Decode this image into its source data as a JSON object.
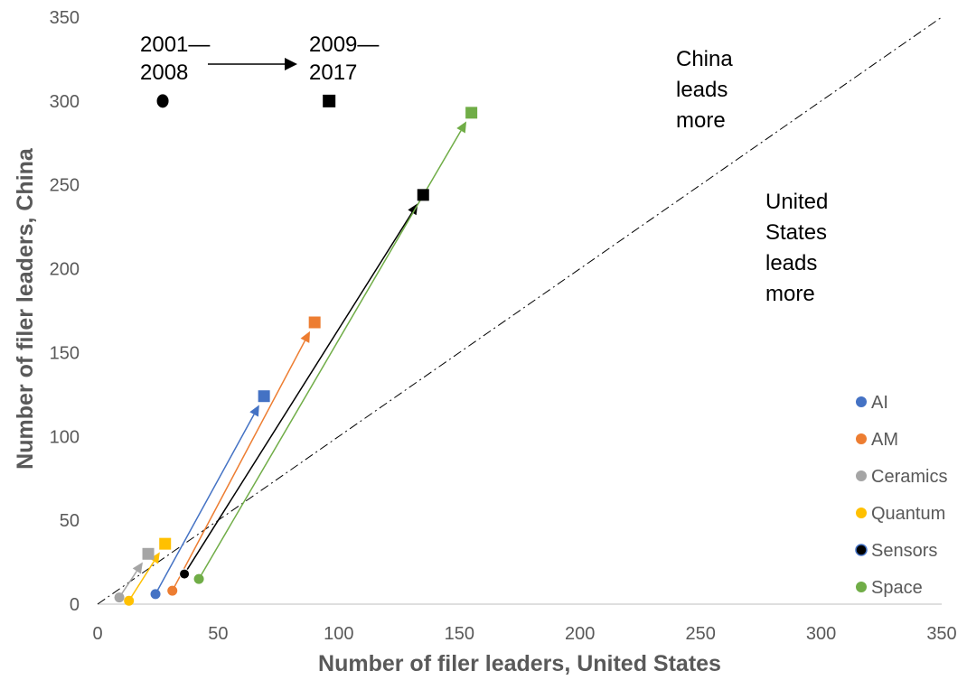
{
  "chart_data": {
    "type": "scatter",
    "xlabel": "Number of filer leaders, United States",
    "ylabel": "Number of filer leaders, China",
    "xlim": [
      0,
      350
    ],
    "ylim": [
      0,
      350
    ],
    "x_ticks": [
      "0",
      "50",
      "100",
      "150",
      "200",
      "250",
      "300",
      "350"
    ],
    "y_ticks": [
      "0",
      "50",
      "100",
      "150",
      "200",
      "250",
      "300",
      "350"
    ],
    "grid": false,
    "legend_position": "right",
    "reference_line": {
      "type": "y=x",
      "style": "dash-dot",
      "color": "#000000"
    },
    "period_key": {
      "from_label": [
        "2001—",
        "2008"
      ],
      "to_label": [
        "2009—",
        "2017"
      ],
      "from_marker": "circle",
      "to_marker": "square",
      "from_point": [
        27,
        300
      ],
      "to_point": [
        96,
        300
      ]
    },
    "region_labels": {
      "china": [
        "China",
        "leads",
        "more"
      ],
      "us": [
        "United",
        "States",
        "leads",
        "more"
      ]
    },
    "series": [
      {
        "name": "AI",
        "color": "#4472C4",
        "p2001_2008": [
          24,
          6
        ],
        "p2009_2017": [
          69,
          124
        ]
      },
      {
        "name": "AM",
        "color": "#ED7D31",
        "p2001_2008": [
          31,
          8
        ],
        "p2009_2017": [
          90,
          168
        ]
      },
      {
        "name": "Ceramics",
        "color": "#A5A5A5",
        "p2001_2008": [
          9,
          4
        ],
        "p2009_2017": [
          21,
          30
        ]
      },
      {
        "name": "Quantum",
        "color": "#FFC000",
        "p2001_2008": [
          13,
          2
        ],
        "p2009_2017": [
          28,
          36
        ]
      },
      {
        "name": "Sensors",
        "color": "#000000",
        "p2001_2008": [
          36,
          18
        ],
        "p2009_2017": [
          135,
          244
        ]
      },
      {
        "name": "Space",
        "color": "#70AD47",
        "p2001_2008": [
          42,
          15
        ],
        "p2009_2017": [
          155,
          293
        ]
      }
    ]
  }
}
